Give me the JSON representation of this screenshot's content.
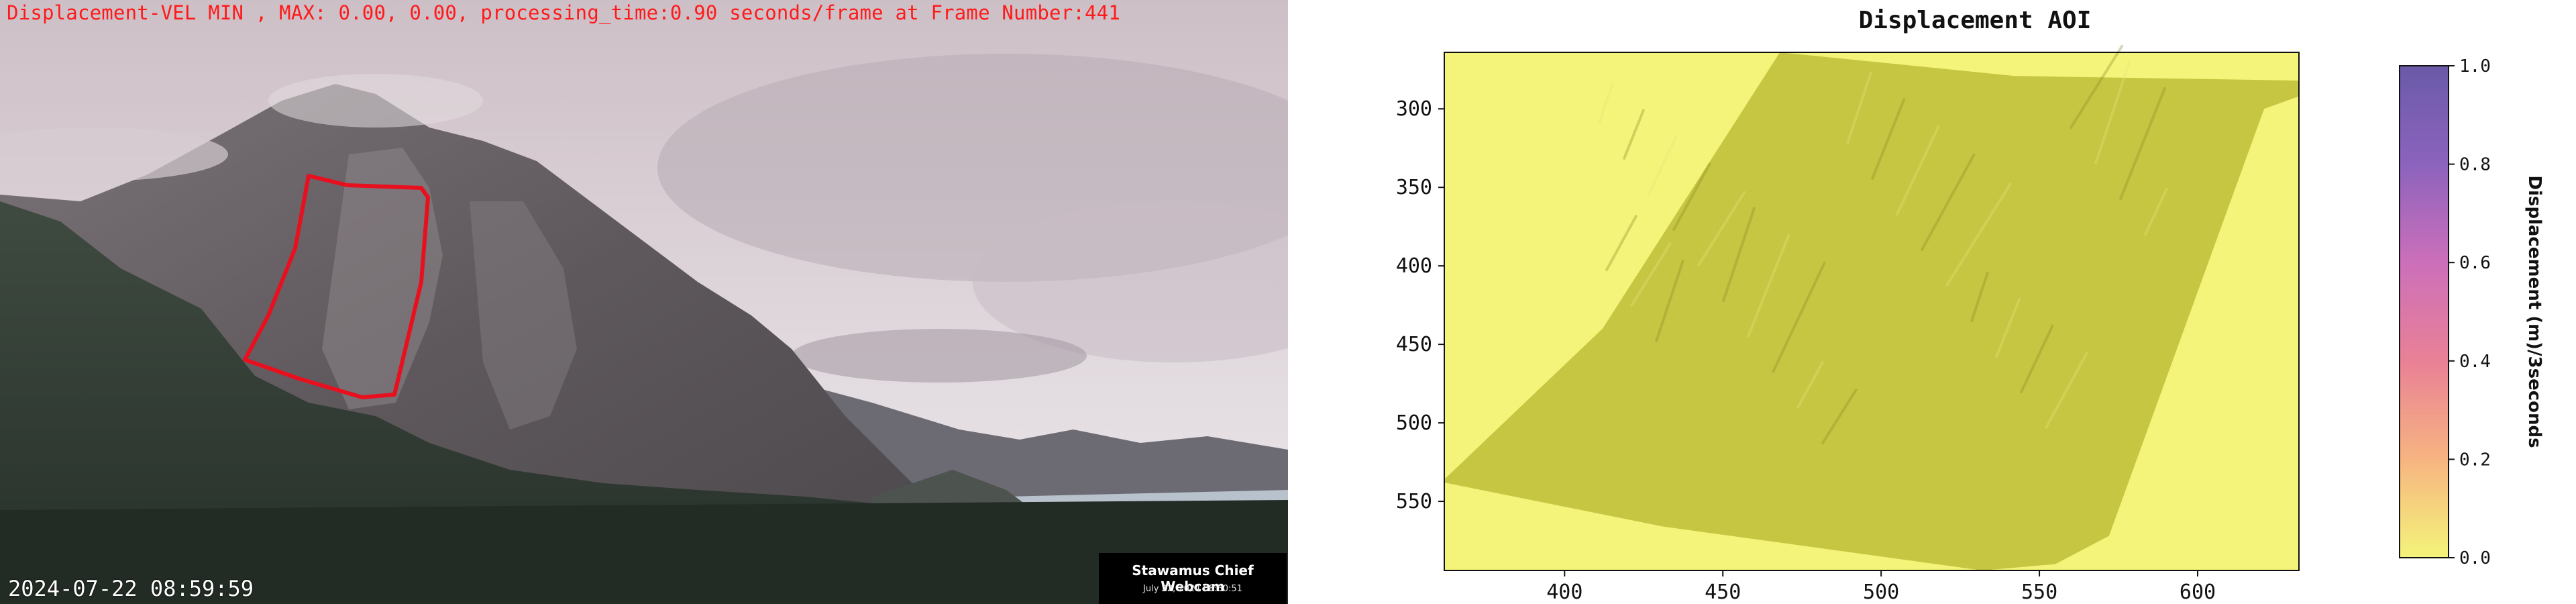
{
  "webcam": {
    "overlay_text": "Displacement-VEL MIN , MAX: 0.00, 0.00, processing_time:0.90 seconds/frame at Frame Number:441",
    "timestamp": "2024-07-22 08:59:59",
    "camera_name": "Stawamus Chief Webcam",
    "camera_date": "July 22, 2024 08:50:51",
    "aoi_color": "#e8101e"
  },
  "chart_data": {
    "type": "heatmap",
    "title": "Displacement AOI",
    "xlabel": "",
    "ylabel": "",
    "xlim": [
      362,
      632
    ],
    "ylim": [
      594,
      264
    ],
    "x_ticks": [
      400,
      450,
      500,
      550,
      600
    ],
    "y_ticks": [
      300,
      350,
      400,
      450,
      500,
      550
    ],
    "colorbar": {
      "label": "Displacement (m)/3seconds",
      "range": [
        0.0,
        1.0
      ],
      "ticks": [
        0.0,
        0.2,
        0.4,
        0.6,
        0.8,
        1.0
      ],
      "tick_labels": [
        "0.0",
        "0.2",
        "0.4",
        "0.6",
        "0.8",
        "1.0"
      ],
      "colors": [
        "#f4f47a",
        "#f7b481",
        "#e98196",
        "#cc6fba",
        "#8c63bd",
        "#6a5aa8"
      ]
    },
    "background_value": 0.0,
    "aoi_value": 0.0,
    "aoi_polygon": [
      [
        468,
        264
      ],
      [
        542,
        279
      ],
      [
        632,
        282
      ],
      [
        632,
        292
      ],
      [
        621,
        300
      ],
      [
        572,
        572
      ],
      [
        555,
        590
      ],
      [
        532,
        594
      ],
      [
        431,
        566
      ],
      [
        362,
        538
      ],
      [
        362,
        536
      ],
      [
        412,
        440
      ],
      [
        468,
        264
      ]
    ],
    "min": 0.0,
    "max": 0.0,
    "grid": false,
    "legend": "none"
  }
}
